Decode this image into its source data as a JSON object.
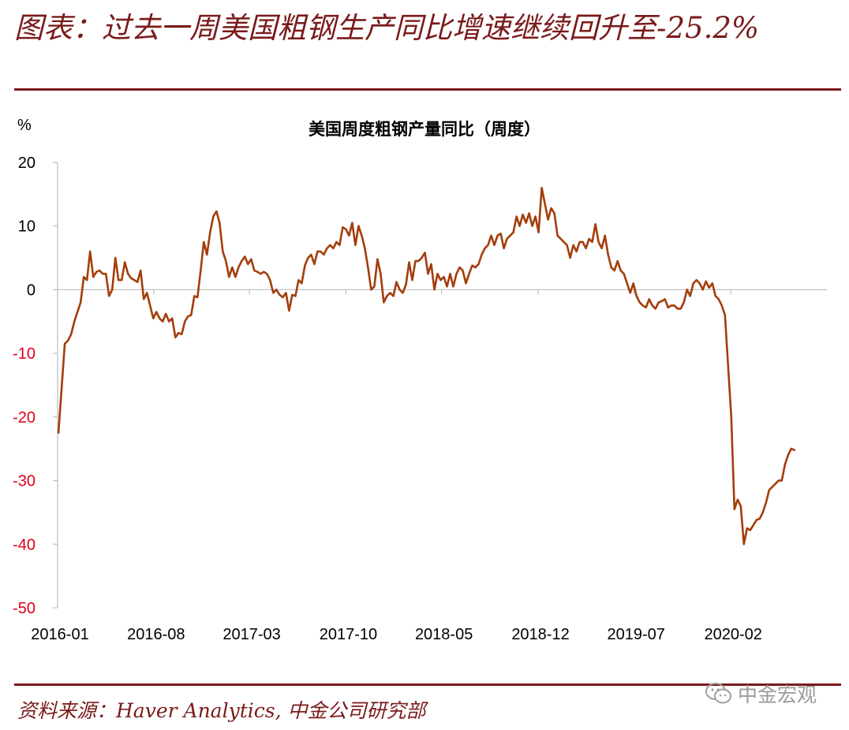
{
  "header": {
    "title": "图表：过去一周美国粗钢生产同比增速继续回升至-25.2%"
  },
  "footer": {
    "source": "资料来源：Haver Analytics, 中金公司研究部",
    "watermark": "中金宏观",
    "watermark_icon": "wechat-icon"
  },
  "colors": {
    "brand": "#7a1a1a",
    "line": "#a33d0b",
    "negative_tick": "#e0001a"
  },
  "chart_data": {
    "type": "line",
    "title": "美国周度粗钢产量同比（周度）",
    "unit_label": "%",
    "ylim": [
      -50,
      20
    ],
    "yticks": [
      20,
      10,
      0,
      -10,
      -20,
      -30,
      -40,
      -50
    ],
    "xlim": [
      "2016-01-01",
      "2020-09-01"
    ],
    "xticks": [
      {
        "label": "2016-01",
        "date": "2016-01-01"
      },
      {
        "label": "2016-08",
        "date": "2016-08-01"
      },
      {
        "label": "2017-03",
        "date": "2017-03-01"
      },
      {
        "label": "2017-10",
        "date": "2017-10-01"
      },
      {
        "label": "2018-05",
        "date": "2018-05-01"
      },
      {
        "label": "2018-12",
        "date": "2018-12-01"
      },
      {
        "label": "2019-07",
        "date": "2019-07-01"
      },
      {
        "label": "2020-02",
        "date": "2020-02-01"
      }
    ],
    "grid": false,
    "legend": "none",
    "series": [
      {
        "points": [
          [
            "2016-01-03",
            -22.5
          ],
          [
            "2016-01-10",
            -15.5
          ],
          [
            "2016-01-17",
            -8.5
          ],
          [
            "2016-01-24",
            -8.0
          ],
          [
            "2016-01-31",
            -7.0
          ],
          [
            "2016-02-07",
            -5.0
          ],
          [
            "2016-02-14",
            -3.5
          ],
          [
            "2016-02-21",
            -2.0
          ],
          [
            "2016-02-28",
            2.0
          ],
          [
            "2016-03-06",
            1.5
          ],
          [
            "2016-03-13",
            6.0
          ],
          [
            "2016-03-20",
            2.0
          ],
          [
            "2016-03-27",
            2.8
          ],
          [
            "2016-04-03",
            3.0
          ],
          [
            "2016-04-10",
            2.5
          ],
          [
            "2016-04-17",
            2.5
          ],
          [
            "2016-04-24",
            -1.0
          ],
          [
            "2016-05-01",
            0.0
          ],
          [
            "2016-05-08",
            5.0
          ],
          [
            "2016-05-15",
            1.5
          ],
          [
            "2016-05-22",
            1.5
          ],
          [
            "2016-05-29",
            4.3
          ],
          [
            "2016-06-05",
            2.5
          ],
          [
            "2016-06-12",
            1.8
          ],
          [
            "2016-06-19",
            1.5
          ],
          [
            "2016-06-26",
            1.2
          ],
          [
            "2016-07-03",
            3.0
          ],
          [
            "2016-07-10",
            -1.5
          ],
          [
            "2016-07-17",
            -0.5
          ],
          [
            "2016-07-24",
            -2.5
          ],
          [
            "2016-07-31",
            -4.5
          ],
          [
            "2016-08-07",
            -3.5
          ],
          [
            "2016-08-14",
            -4.5
          ],
          [
            "2016-08-21",
            -5.0
          ],
          [
            "2016-08-28",
            -3.8
          ],
          [
            "2016-09-04",
            -5.0
          ],
          [
            "2016-09-11",
            -4.5
          ],
          [
            "2016-09-18",
            -7.5
          ],
          [
            "2016-09-25",
            -6.8
          ],
          [
            "2016-10-02",
            -7.0
          ],
          [
            "2016-10-09",
            -5.0
          ],
          [
            "2016-10-16",
            -4.2
          ],
          [
            "2016-10-23",
            -4.0
          ],
          [
            "2016-10-30",
            -1.0
          ],
          [
            "2016-11-06",
            -1.2
          ],
          [
            "2016-11-13",
            3.0
          ],
          [
            "2016-11-20",
            7.5
          ],
          [
            "2016-11-27",
            5.5
          ],
          [
            "2016-12-04",
            9.0
          ],
          [
            "2016-12-11",
            11.5
          ],
          [
            "2016-12-18",
            12.3
          ],
          [
            "2016-12-25",
            10.5
          ],
          [
            "2017-01-01",
            6.0
          ],
          [
            "2017-01-08",
            4.5
          ],
          [
            "2017-01-15",
            2.0
          ],
          [
            "2017-01-22",
            3.5
          ],
          [
            "2017-01-29",
            2.0
          ],
          [
            "2017-02-05",
            3.5
          ],
          [
            "2017-02-12",
            4.5
          ],
          [
            "2017-02-19",
            5.2
          ],
          [
            "2017-02-26",
            4.0
          ],
          [
            "2017-03-05",
            4.8
          ],
          [
            "2017-03-12",
            3.0
          ],
          [
            "2017-03-19",
            2.8
          ],
          [
            "2017-03-26",
            2.5
          ],
          [
            "2017-04-02",
            2.8
          ],
          [
            "2017-04-09",
            2.5
          ],
          [
            "2017-04-16",
            1.5
          ],
          [
            "2017-04-23",
            -0.5
          ],
          [
            "2017-04-30",
            0.0
          ],
          [
            "2017-05-07",
            -0.8
          ],
          [
            "2017-05-14",
            -1.2
          ],
          [
            "2017-05-21",
            -0.5
          ],
          [
            "2017-05-28",
            -3.3
          ],
          [
            "2017-06-04",
            -0.8
          ],
          [
            "2017-06-11",
            -1.0
          ],
          [
            "2017-06-18",
            1.5
          ],
          [
            "2017-06-25",
            1.0
          ],
          [
            "2017-07-02",
            3.8
          ],
          [
            "2017-07-09",
            5.0
          ],
          [
            "2017-07-16",
            5.5
          ],
          [
            "2017-07-23",
            4.0
          ],
          [
            "2017-07-30",
            6.0
          ],
          [
            "2017-08-06",
            6.0
          ],
          [
            "2017-08-13",
            5.5
          ],
          [
            "2017-08-20",
            6.5
          ],
          [
            "2017-08-27",
            7.0
          ],
          [
            "2017-09-03",
            6.5
          ],
          [
            "2017-09-10",
            7.5
          ],
          [
            "2017-09-17",
            7.0
          ],
          [
            "2017-09-24",
            9.8
          ],
          [
            "2017-10-01",
            9.5
          ],
          [
            "2017-10-08",
            8.5
          ],
          [
            "2017-10-15",
            10.5
          ],
          [
            "2017-10-22",
            7.0
          ],
          [
            "2017-10-29",
            10.0
          ],
          [
            "2017-11-05",
            8.5
          ],
          [
            "2017-11-12",
            6.5
          ],
          [
            "2017-11-19",
            3.5
          ],
          [
            "2017-11-26",
            0.0
          ],
          [
            "2017-12-03",
            0.5
          ],
          [
            "2017-12-10",
            4.8
          ],
          [
            "2017-12-17",
            2.5
          ],
          [
            "2017-12-24",
            -2.0
          ],
          [
            "2017-12-31",
            -1.0
          ],
          [
            "2018-01-07",
            -0.5
          ],
          [
            "2018-01-14",
            -1.0
          ],
          [
            "2018-01-21",
            1.2
          ],
          [
            "2018-01-28",
            0.0
          ],
          [
            "2018-02-04",
            -0.5
          ],
          [
            "2018-02-11",
            0.8
          ],
          [
            "2018-02-18",
            4.3
          ],
          [
            "2018-02-25",
            1.5
          ],
          [
            "2018-03-04",
            4.5
          ],
          [
            "2018-03-11",
            4.5
          ],
          [
            "2018-03-18",
            5.0
          ],
          [
            "2018-03-25",
            5.8
          ],
          [
            "2018-04-01",
            2.5
          ],
          [
            "2018-04-08",
            4.0
          ],
          [
            "2018-04-15",
            0.0
          ],
          [
            "2018-04-22",
            2.5
          ],
          [
            "2018-04-29",
            1.5
          ],
          [
            "2018-05-06",
            2.0
          ],
          [
            "2018-05-13",
            0.5
          ],
          [
            "2018-05-20",
            2.5
          ],
          [
            "2018-05-27",
            0.5
          ],
          [
            "2018-06-03",
            2.5
          ],
          [
            "2018-06-10",
            3.5
          ],
          [
            "2018-06-17",
            3.0
          ],
          [
            "2018-06-24",
            1.0
          ],
          [
            "2018-07-01",
            2.5
          ],
          [
            "2018-07-08",
            3.8
          ],
          [
            "2018-07-15",
            3.5
          ],
          [
            "2018-07-22",
            4.0
          ],
          [
            "2018-07-29",
            5.5
          ],
          [
            "2018-08-05",
            6.5
          ],
          [
            "2018-08-12",
            7.0
          ],
          [
            "2018-08-19",
            8.5
          ],
          [
            "2018-08-26",
            7.0
          ],
          [
            "2018-09-02",
            8.5
          ],
          [
            "2018-09-09",
            8.8
          ],
          [
            "2018-09-16",
            6.5
          ],
          [
            "2018-09-23",
            8.0
          ],
          [
            "2018-09-30",
            8.5
          ],
          [
            "2018-10-07",
            9.0
          ],
          [
            "2018-10-14",
            11.5
          ],
          [
            "2018-10-21",
            10.0
          ],
          [
            "2018-10-28",
            11.8
          ],
          [
            "2018-11-04",
            10.5
          ],
          [
            "2018-11-11",
            12.0
          ],
          [
            "2018-11-18",
            10.0
          ],
          [
            "2018-11-25",
            11.5
          ],
          [
            "2018-12-02",
            9.0
          ],
          [
            "2018-12-09",
            16.0
          ],
          [
            "2018-12-16",
            13.5
          ],
          [
            "2018-12-23",
            11.0
          ],
          [
            "2018-12-30",
            12.8
          ],
          [
            "2019-01-06",
            12.0
          ],
          [
            "2019-01-13",
            8.5
          ],
          [
            "2019-01-20",
            8.0
          ],
          [
            "2019-01-27",
            7.5
          ],
          [
            "2019-02-03",
            7.0
          ],
          [
            "2019-02-10",
            5.0
          ],
          [
            "2019-02-17",
            7.0
          ],
          [
            "2019-02-24",
            6.0
          ],
          [
            "2019-03-03",
            7.5
          ],
          [
            "2019-03-10",
            7.5
          ],
          [
            "2019-03-17",
            6.5
          ],
          [
            "2019-03-24",
            8.0
          ],
          [
            "2019-03-31",
            7.5
          ],
          [
            "2019-04-07",
            10.3
          ],
          [
            "2019-04-14",
            7.5
          ],
          [
            "2019-04-21",
            6.5
          ],
          [
            "2019-04-28",
            8.5
          ],
          [
            "2019-05-05",
            5.5
          ],
          [
            "2019-05-12",
            3.5
          ],
          [
            "2019-05-19",
            3.0
          ],
          [
            "2019-05-26",
            4.5
          ],
          [
            "2019-06-02",
            3.0
          ],
          [
            "2019-06-09",
            2.5
          ],
          [
            "2019-06-16",
            1.0
          ],
          [
            "2019-06-23",
            -0.5
          ],
          [
            "2019-06-30",
            1.0
          ],
          [
            "2019-07-07",
            -1.0
          ],
          [
            "2019-07-14",
            -2.0
          ],
          [
            "2019-07-21",
            -2.5
          ],
          [
            "2019-07-28",
            -2.8
          ],
          [
            "2019-08-04",
            -1.5
          ],
          [
            "2019-08-11",
            -2.5
          ],
          [
            "2019-08-18",
            -3.0
          ],
          [
            "2019-08-25",
            -2.0
          ],
          [
            "2019-09-01",
            -1.8
          ],
          [
            "2019-09-08",
            -1.5
          ],
          [
            "2019-09-15",
            -2.8
          ],
          [
            "2019-09-22",
            -2.5
          ],
          [
            "2019-09-29",
            -2.5
          ],
          [
            "2019-10-06",
            -3.0
          ],
          [
            "2019-10-13",
            -3.0
          ],
          [
            "2019-10-20",
            -2.0
          ],
          [
            "2019-10-27",
            0.0
          ],
          [
            "2019-11-03",
            -1.0
          ],
          [
            "2019-11-10",
            1.0
          ],
          [
            "2019-11-17",
            1.5
          ],
          [
            "2019-11-24",
            1.0
          ],
          [
            "2019-12-01",
            0.0
          ],
          [
            "2019-12-08",
            1.3
          ],
          [
            "2019-12-15",
            0.3
          ],
          [
            "2019-12-22",
            1.0
          ],
          [
            "2019-12-29",
            -1.0
          ],
          [
            "2020-01-05",
            -1.5
          ],
          [
            "2020-01-12",
            -2.5
          ],
          [
            "2020-01-19",
            -4.0
          ],
          [
            "2020-01-26",
            -12.0
          ],
          [
            "2020-02-02",
            -20.0
          ],
          [
            "2020-02-09",
            -34.5
          ],
          [
            "2020-02-16",
            -33.0
          ],
          [
            "2020-02-23",
            -34.0
          ],
          [
            "2020-03-01",
            -40.0
          ],
          [
            "2020-03-08",
            -37.5
          ],
          [
            "2020-03-15",
            -37.8
          ],
          [
            "2020-03-22",
            -37.0
          ],
          [
            "2020-03-29",
            -36.2
          ],
          [
            "2020-04-05",
            -36.0
          ],
          [
            "2020-04-12",
            -35.0
          ],
          [
            "2020-04-19",
            -33.5
          ],
          [
            "2020-04-26",
            -31.5
          ],
          [
            "2020-05-03",
            -31.0
          ],
          [
            "2020-05-10",
            -30.5
          ],
          [
            "2020-05-17",
            -30.0
          ],
          [
            "2020-05-24",
            -30.0
          ],
          [
            "2020-05-31",
            -27.5
          ],
          [
            "2020-06-07",
            -26.0
          ],
          [
            "2020-06-14",
            -25.0
          ],
          [
            "2020-06-21",
            -25.2
          ]
        ]
      }
    ]
  }
}
